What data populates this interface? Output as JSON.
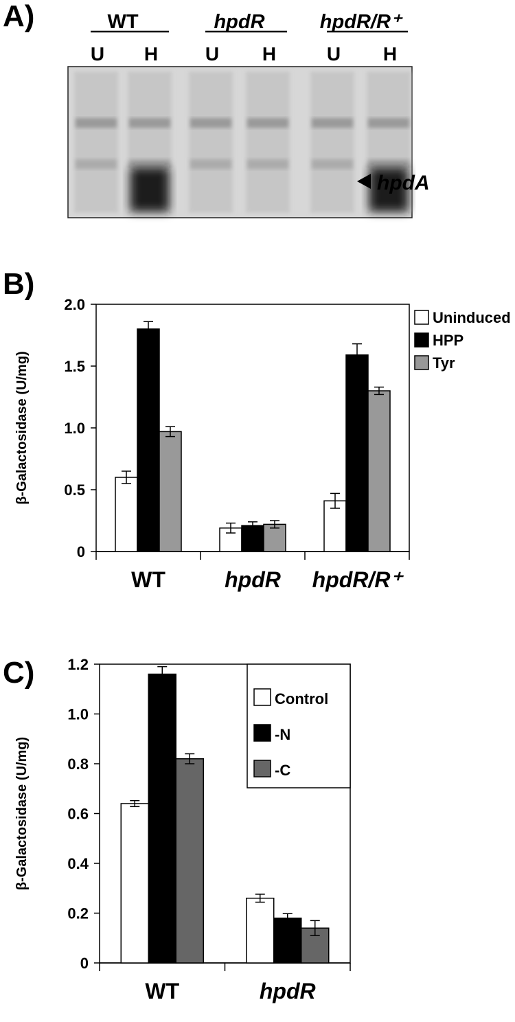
{
  "panels": {
    "a": {
      "letter": "A)"
    },
    "b": {
      "letter": "B)"
    },
    "c": {
      "letter": "C)"
    }
  },
  "gel": {
    "groups": [
      {
        "label": "WT",
        "italic": false,
        "lanes": [
          "U",
          "H"
        ]
      },
      {
        "label": "hpdR",
        "italic": true,
        "lanes": [
          "U",
          "H"
        ]
      },
      {
        "label": "hpdR/R⁺",
        "italic": true,
        "lanes": [
          "U",
          "H"
        ]
      }
    ],
    "band_label": "hpdA",
    "arrow_icon": "arrowhead-left-icon",
    "lane_induced_band": [
      0,
      1,
      0,
      0,
      0,
      1
    ]
  },
  "chart_data": [
    {
      "type": "bar",
      "ylabel": "β-Galactosidase (U/mg)",
      "ylim": [
        0,
        2.0
      ],
      "yticks": [
        "0",
        "0.5",
        "1.0",
        "1.5",
        "2.0"
      ],
      "ytick_values": [
        0,
        0.5,
        1.0,
        1.5,
        2.0
      ],
      "categories": [
        "WT",
        "hpdR",
        "hpdR/R⁺"
      ],
      "categories_italic": [
        false,
        true,
        true
      ],
      "legend_position": "top-right",
      "series": [
        {
          "name": "Uninduced",
          "color": "#ffffff",
          "values": [
            0.6,
            0.19,
            0.41
          ],
          "errors": [
            0.05,
            0.04,
            0.06
          ]
        },
        {
          "name": "HPP",
          "color": "#000000",
          "values": [
            1.8,
            0.21,
            1.59
          ],
          "errors": [
            0.06,
            0.03,
            0.09
          ]
        },
        {
          "name": "Tyr",
          "color": "#999999",
          "values": [
            0.97,
            0.22,
            1.3
          ],
          "errors": [
            0.04,
            0.03,
            0.03
          ]
        }
      ]
    },
    {
      "type": "bar",
      "ylabel": "β-Galactosidase (U/mg)",
      "ylim": [
        0,
        1.2
      ],
      "yticks": [
        "0",
        "0.2",
        "0.4",
        "0.6",
        "0.8",
        "1.0",
        "1.2"
      ],
      "ytick_values": [
        0,
        0.2,
        0.4,
        0.6,
        0.8,
        1.0,
        1.2
      ],
      "categories": [
        "WT",
        "hpdR"
      ],
      "categories_italic": [
        false,
        true
      ],
      "legend_position": "top-right",
      "series": [
        {
          "name": "Control",
          "color": "#ffffff",
          "values": [
            0.64,
            0.26
          ],
          "errors": [
            0.012,
            0.016
          ]
        },
        {
          "name": "-N",
          "color": "#000000",
          "values": [
            1.16,
            0.18
          ],
          "errors": [
            0.03,
            0.018
          ]
        },
        {
          "name": "-C",
          "color": "#666666",
          "values": [
            0.82,
            0.14
          ],
          "errors": [
            0.02,
            0.03
          ]
        }
      ]
    }
  ]
}
